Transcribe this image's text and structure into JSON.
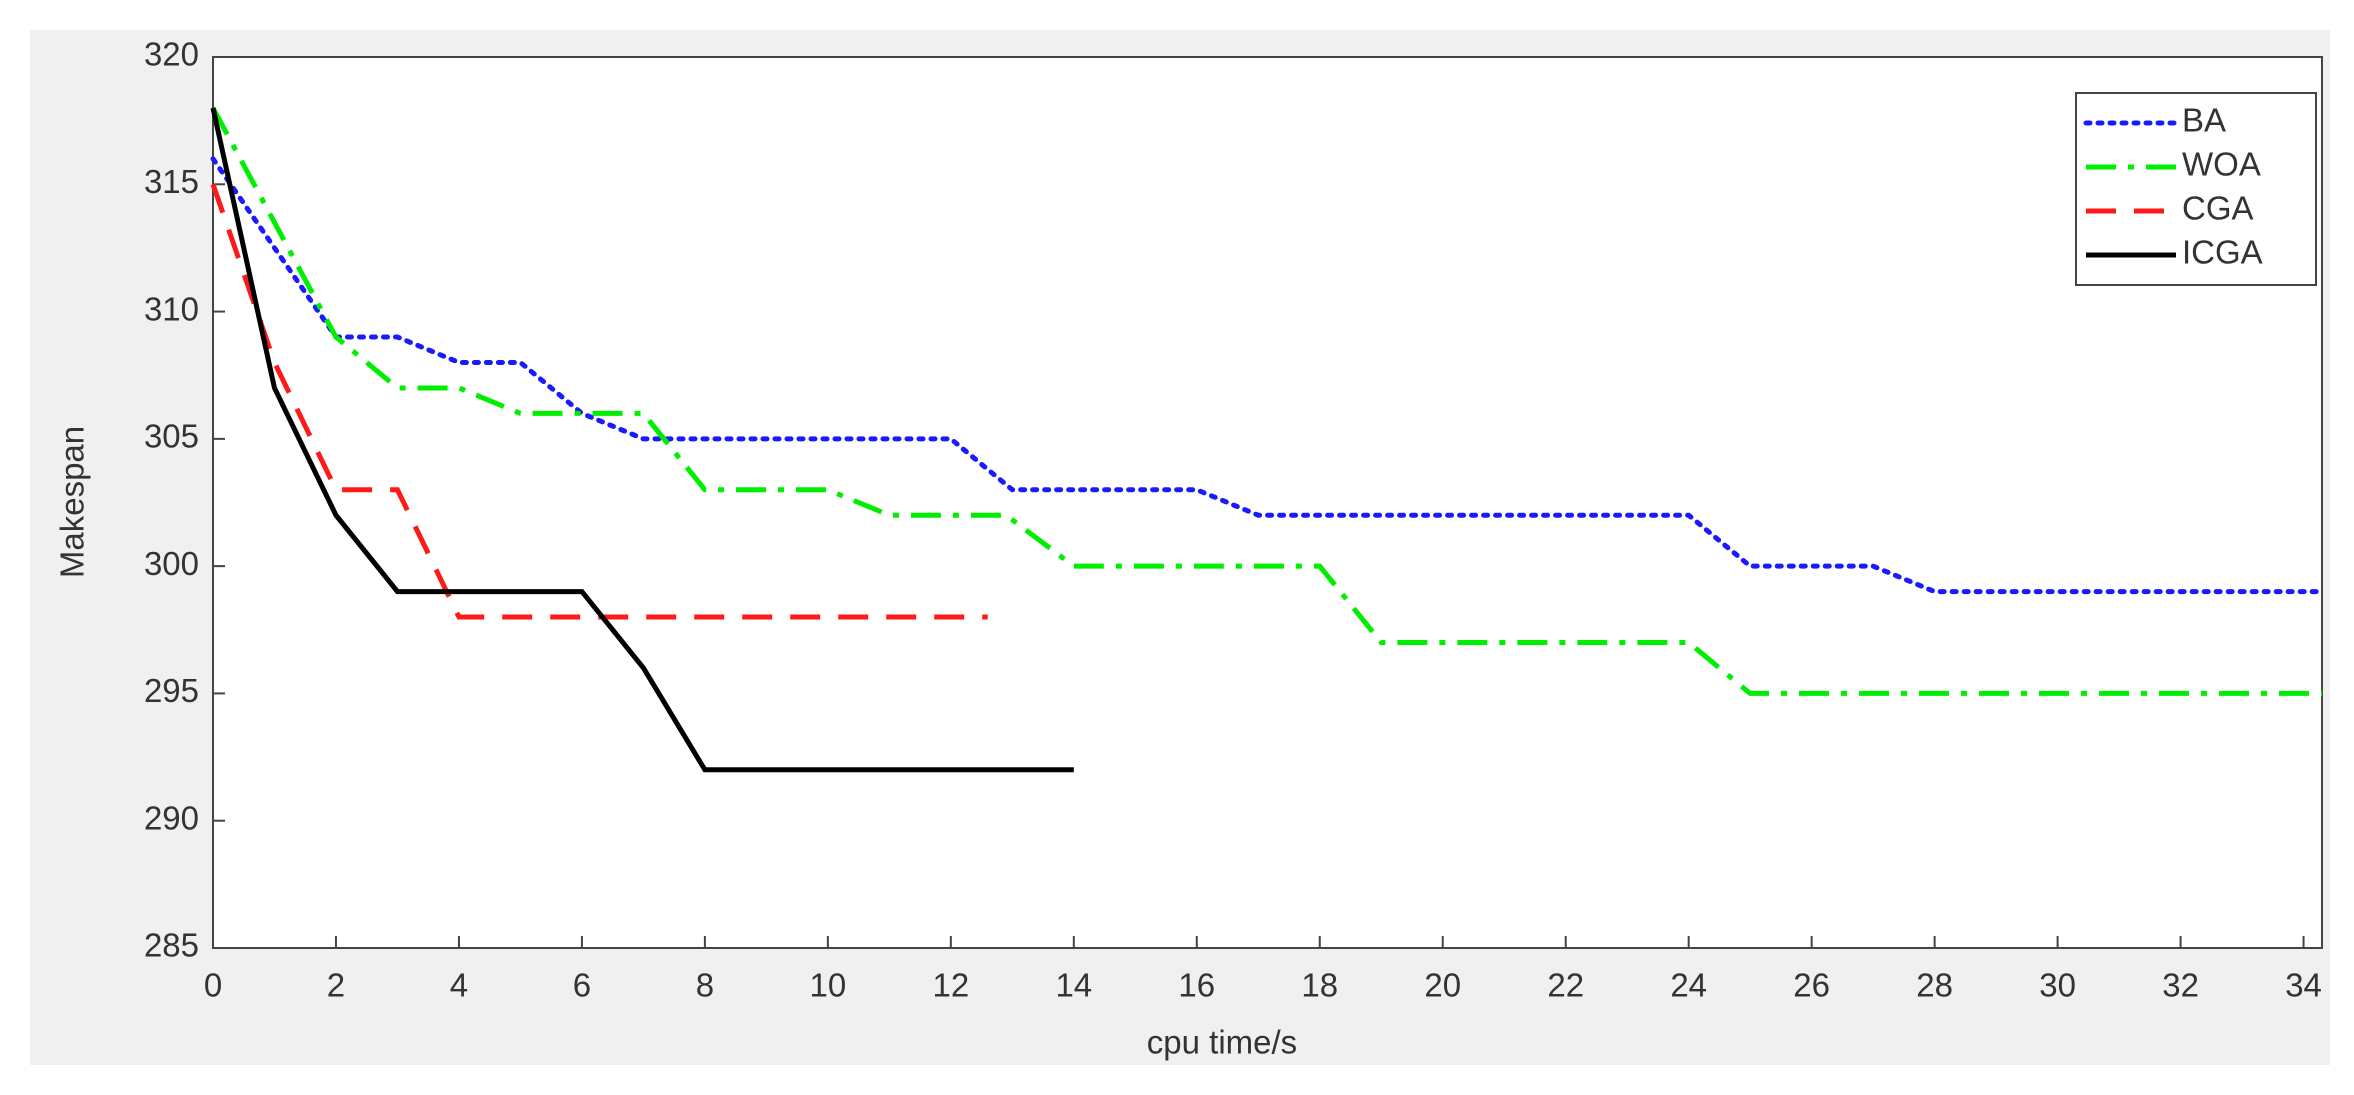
{
  "chart_data": {
    "type": "line",
    "xlabel": "cpu time/s",
    "ylabel": "Makespan",
    "xlim": [
      0,
      34.3
    ],
    "ylim": [
      285,
      320
    ],
    "xticks": [
      0,
      2,
      4,
      6,
      8,
      10,
      12,
      14,
      16,
      18,
      20,
      22,
      24,
      26,
      28,
      30,
      32,
      34
    ],
    "yticks": [
      285,
      290,
      295,
      300,
      305,
      310,
      315,
      320
    ],
    "grid": false,
    "legend": "upper right",
    "series": [
      {
        "name": "BA",
        "color": "#1a1aff",
        "line_style": "dotted",
        "x": [
          0,
          2,
          3,
          4,
          5,
          6,
          7,
          12,
          13,
          16,
          17,
          24,
          25,
          27,
          28,
          34.3
        ],
        "values": [
          316,
          309,
          309,
          308,
          308,
          306,
          305,
          305,
          303,
          303,
          302,
          302,
          300,
          300,
          299,
          299
        ]
      },
      {
        "name": "WOA",
        "color": "#00ee00",
        "line_style": "dashdot",
        "x": [
          0,
          2,
          3,
          4,
          5,
          7,
          8,
          10,
          11,
          12.9,
          14,
          18,
          19,
          24,
          25,
          34.3
        ],
        "values": [
          318,
          309,
          307,
          307,
          306,
          306,
          303,
          303,
          302,
          302,
          300,
          300,
          297,
          297,
          295,
          295
        ]
      },
      {
        "name": "CGA",
        "color": "#ff1a1a",
        "line_style": "dashed",
        "x": [
          0,
          1,
          2,
          3,
          4,
          12.6
        ],
        "values": [
          315,
          308,
          303,
          303,
          298,
          298
        ]
      },
      {
        "name": "ICGA",
        "color": "#000000",
        "line_style": "solid",
        "x": [
          0,
          1,
          2,
          3,
          6,
          7,
          8,
          14
        ],
        "values": [
          318,
          307,
          302,
          299,
          299,
          296,
          292,
          292
        ]
      }
    ]
  }
}
